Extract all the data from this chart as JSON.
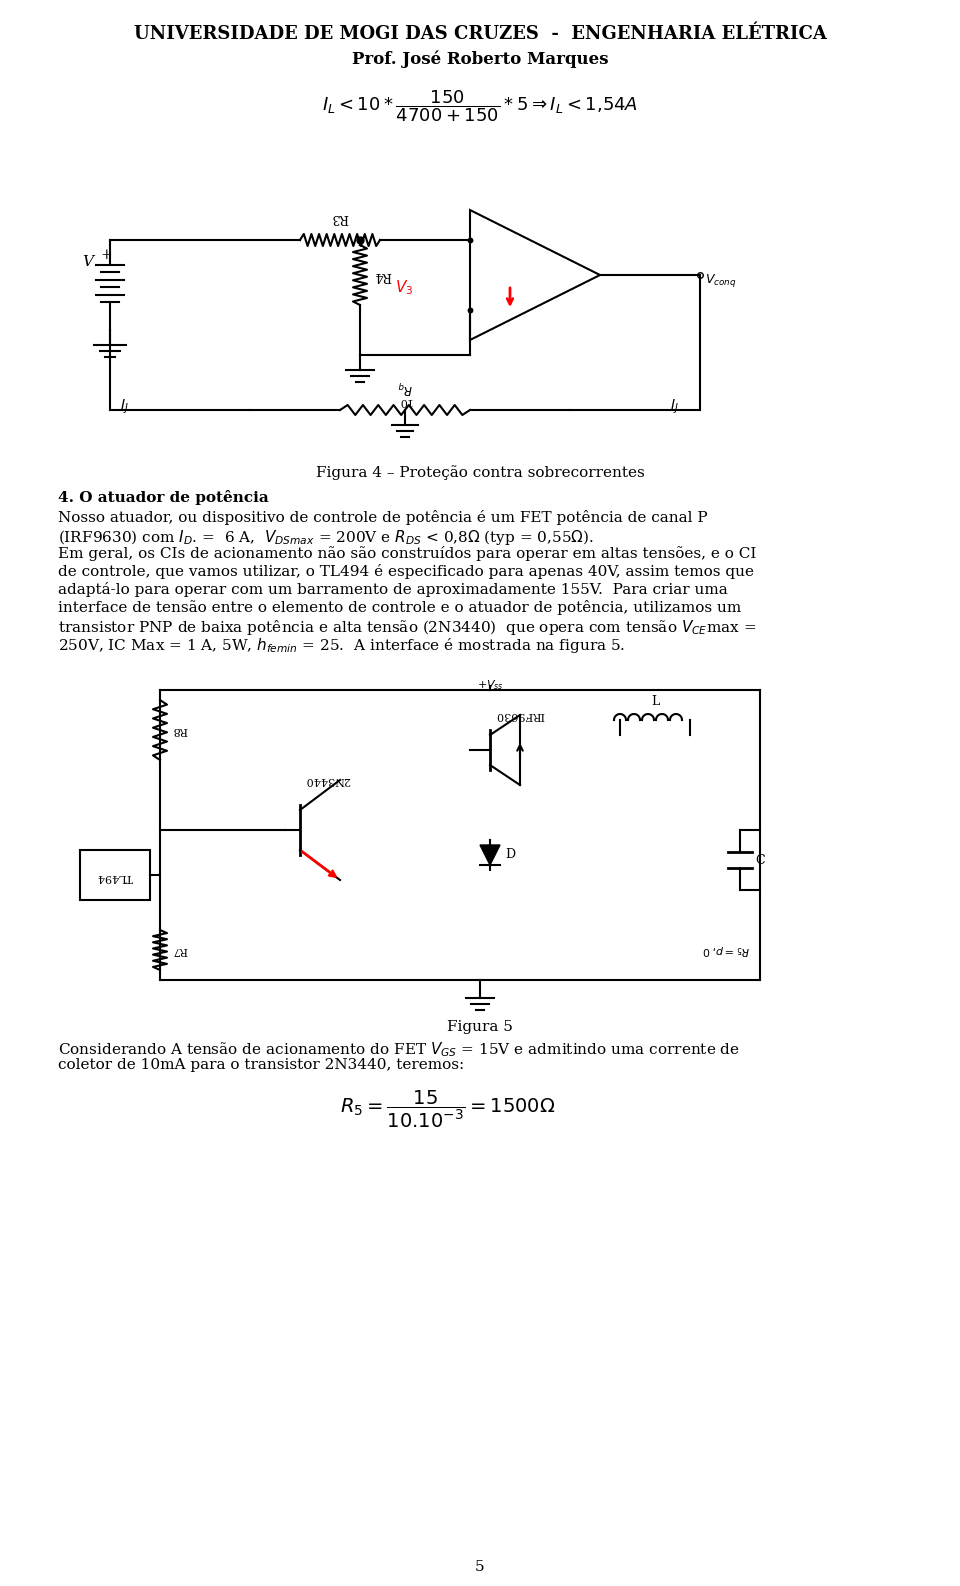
{
  "title_line1": "UNIVERSIDADE DE MOGI DAS CRUZES  -  ENGENHARIA ELÉTRICA",
  "title_line2": "Prof. José Roberto Marques",
  "fig4_caption": "Figura 4 – Proteção contra sobrecorrentes",
  "para_title": "4. O atuador de potência",
  "para1": "Nosso atuador, ou dispositivo de controle de potência é um FET potência de canal P",
  "para2": "(IRF9630) com $I_D$. =  6 A,  $V_{DSmax}$ = 200V e $R_{DS}$ < 0,8$\\Omega$ (typ = 0,55$\\Omega$).",
  "para3": "Em geral, os CIs de acionamento não são construídos para operar em altas tensões, e o CI",
  "para4": "de controle, que vamos utilizar, o TL494 é especificado para apenas 40V, assim temos que",
  "para5": "adaptá-lo para operar com um barramento de aproximadamente 155V.",
  "para6": "Para criar uma",
  "para7": "interface de tensão entre o elemento de controle e o atuador de potência, utilizamos um",
  "para8": "transistor PNP de baixa potência e alta tensão (2N3440)  que opera com tensão $V_{CE}$max =",
  "para9": "250V, IC Max = 1 A, 5W, $h_{femin}$ = 25.  A interface é mostrada na figura 5.",
  "fig5_caption": "Figura 5",
  "para10": "Considerando A tensão de acionamento do FET $V_{GS}$ = 15V e admitindo uma corrente de",
  "para11": "coletor de 10mA para o transistor 2N3440, teremos:",
  "page_number": "5",
  "bg_color": "#ffffff",
  "text_color": "#000000"
}
